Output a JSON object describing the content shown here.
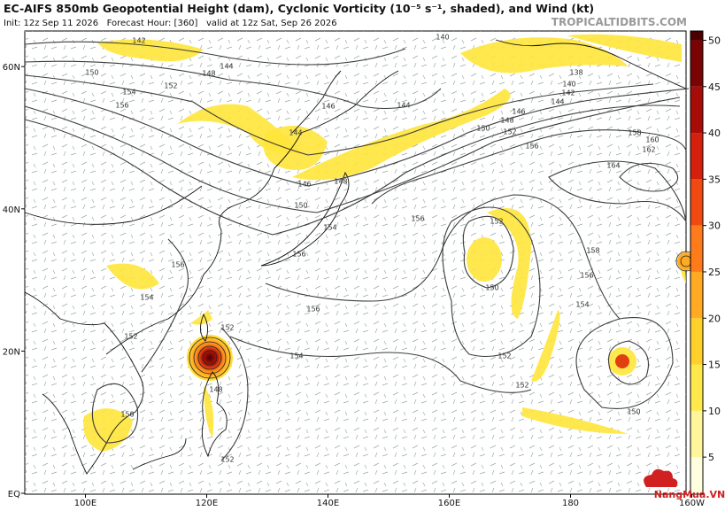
{
  "header": {
    "title": "EC-AIFS 850mb Geopotential Height (dam), Cyclonic Vorticity (10⁻⁵ s⁻¹, shaded), and Wind (kt)",
    "subtitle": "Init: 12z Sep 11 2026   Forecast Hour: [360]   valid at 12z Sat, Sep 26 2026",
    "brand": "TROPICALTIDBITS.COM"
  },
  "map": {
    "lon_ticks": [
      {
        "value": 100,
        "label": "100E"
      },
      {
        "value": 120,
        "label": "120E"
      },
      {
        "value": 140,
        "label": "140E"
      },
      {
        "value": 160,
        "label": "160E"
      },
      {
        "value": 180,
        "label": "180"
      },
      {
        "value": 200,
        "label": "160W"
      }
    ],
    "lat_ticks": [
      {
        "value": 60,
        "label": "60N"
      },
      {
        "value": 40,
        "label": "40N"
      },
      {
        "value": 20,
        "label": "20N"
      },
      {
        "value": 0,
        "label": "EQ"
      }
    ]
  },
  "colorbar": {
    "range": [
      1,
      51
    ],
    "ticks": [
      5,
      10,
      15,
      20,
      25,
      30,
      35,
      40,
      45,
      50
    ],
    "colors": [
      "#ffffe0",
      "#fff59a",
      "#ffe94a",
      "#ffd02a",
      "#ffaa22",
      "#ff7a1a",
      "#f04a12",
      "#d4200c",
      "#a80c08",
      "#7a0404",
      "#4a0000"
    ]
  },
  "contour_labels": [
    "142",
    "140",
    "144",
    "148",
    "150",
    "152",
    "154",
    "156",
    "146",
    "144",
    "144",
    "138",
    "140",
    "142",
    "144",
    "146",
    "148",
    "150",
    "152",
    "156",
    "158",
    "160",
    "162",
    "164",
    "146",
    "150",
    "148",
    "154",
    "156",
    "156",
    "152",
    "150",
    "158",
    "156",
    "154",
    "156",
    "154",
    "152",
    "152",
    "150",
    "156",
    "154",
    "152",
    "152",
    "150",
    "152",
    "148"
  ],
  "watermark": "NangMua.VN"
}
